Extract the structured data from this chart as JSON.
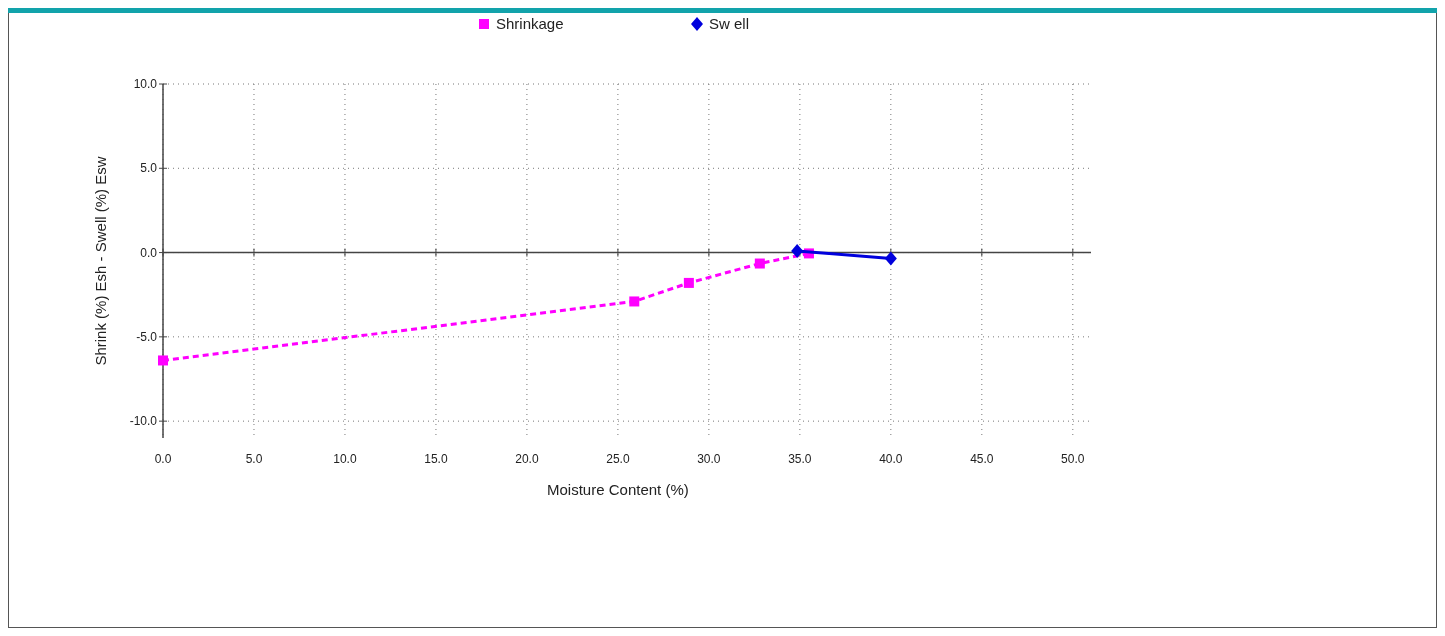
{
  "chart_data": {
    "type": "line",
    "xlabel": "Moisture Content (%)",
    "ylabel": "Shrink (%) Esh - Swell (%) Esw",
    "xlim": [
      0,
      51
    ],
    "ylim": [
      -11,
      10
    ],
    "xticks": [
      {
        "value": 0,
        "label": "0.0"
      },
      {
        "value": 5,
        "label": "5.0"
      },
      {
        "value": 10,
        "label": "10.0"
      },
      {
        "value": 15,
        "label": "15.0"
      },
      {
        "value": 20,
        "label": "20.0"
      },
      {
        "value": 25,
        "label": "25.0"
      },
      {
        "value": 30,
        "label": "30.0"
      },
      {
        "value": 35,
        "label": "35.0"
      },
      {
        "value": 40,
        "label": "40.0"
      },
      {
        "value": 45,
        "label": "45.0"
      },
      {
        "value": 50,
        "label": "50.0"
      }
    ],
    "yticks": [
      {
        "value": 10,
        "label": "10.0"
      },
      {
        "value": 5,
        "label": "5.0"
      },
      {
        "value": 0,
        "label": "0.0"
      },
      {
        "value": -5,
        "label": "-5.0"
      },
      {
        "value": -10,
        "label": "-10.0"
      }
    ],
    "grid": true,
    "legend": "top",
    "series": [
      {
        "name": "Shrinkage",
        "color": "#ff00ff",
        "marker": "square",
        "line_style": "dashed",
        "x": [
          0,
          25.9,
          28.9,
          32.8,
          35.5
        ],
        "values": [
          -6.4,
          -2.9,
          -1.8,
          -0.65,
          -0.05
        ]
      },
      {
        "name": "Sw ell",
        "color": "#0000dd",
        "marker": "diamond",
        "line_style": "solid",
        "x": [
          34.85,
          40
        ],
        "values": [
          0.1,
          -0.35
        ]
      }
    ]
  }
}
